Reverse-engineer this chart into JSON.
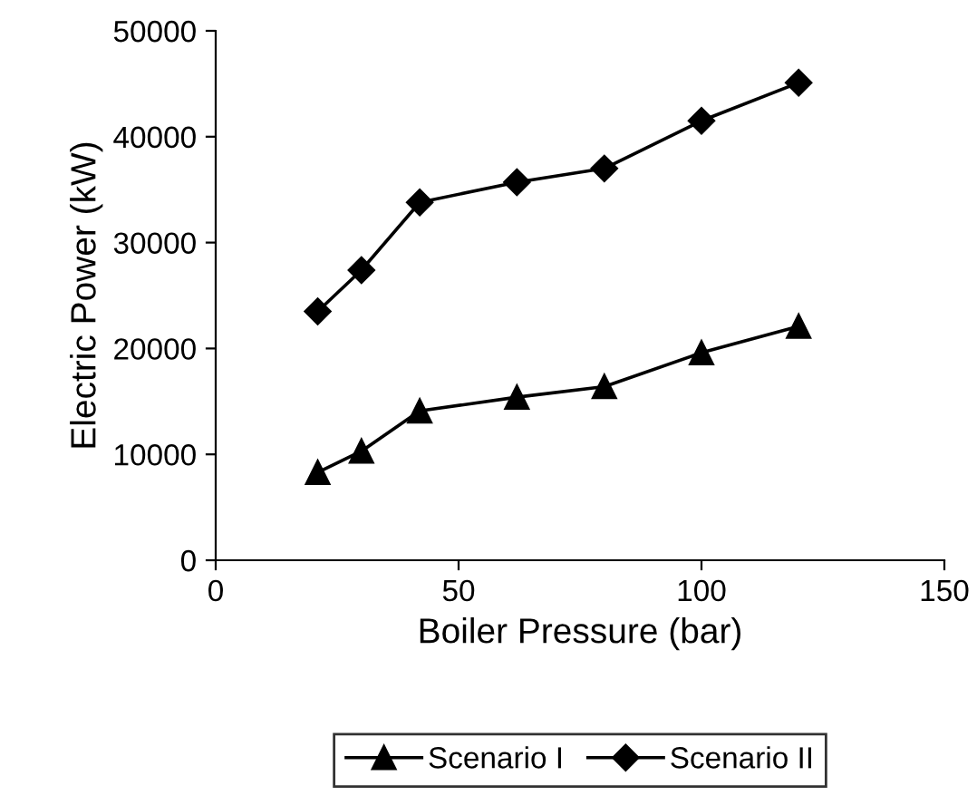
{
  "chart_data": {
    "type": "line",
    "xlabel": "Boiler Pressure (bar)",
    "ylabel": "Electric Power (kW)",
    "x": [
      21,
      30,
      42,
      62,
      80,
      100,
      120
    ],
    "series": [
      {
        "name": "Scenario I",
        "color": "#000000",
        "marker": "triangle",
        "values": [
          8300,
          10300,
          14100,
          15400,
          16400,
          19600,
          22100
        ]
      },
      {
        "name": "Scenario II",
        "color": "#000000",
        "marker": "diamond",
        "values": [
          23500,
          27400,
          33800,
          35700,
          37000,
          41500,
          45100
        ]
      }
    ],
    "xlim": [
      0,
      150
    ],
    "xticks": [
      0,
      50,
      100,
      150
    ],
    "ylim": [
      0,
      50000
    ],
    "yticks": [
      0,
      10000,
      20000,
      30000,
      40000,
      50000
    ],
    "grid": false,
    "legend": "bottom",
    "line_style": "solid"
  }
}
